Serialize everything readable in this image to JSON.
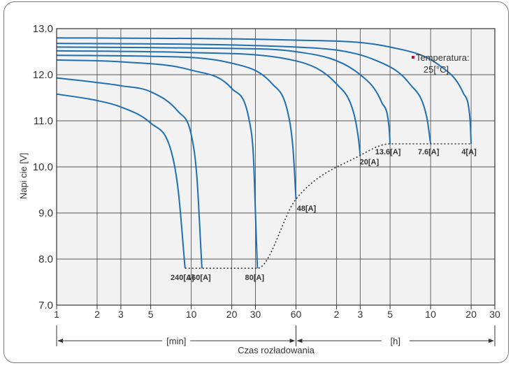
{
  "chart_data": {
    "type": "line",
    "ylabel": "Napi cie [V]",
    "xlabel": "Czas rozładowania",
    "ylim": [
      7.0,
      13.0
    ],
    "yticks": [
      "7.0",
      "8.0",
      "9.0",
      "10.0",
      "11.0",
      "12.0",
      "13.0"
    ],
    "xscale": "log",
    "xticks": [
      {
        "label": "1",
        "minutes": 1
      },
      {
        "label": "2",
        "minutes": 2
      },
      {
        "label": "3",
        "minutes": 3
      },
      {
        "label": "5",
        "minutes": 5
      },
      {
        "label": "10",
        "minutes": 10
      },
      {
        "label": "20",
        "minutes": 20
      },
      {
        "label": "30",
        "minutes": 30
      },
      {
        "label": "60",
        "minutes": 60
      },
      {
        "label": "2",
        "minutes": 120
      },
      {
        "label": "3",
        "minutes": 180
      },
      {
        "label": "5",
        "minutes": 300
      },
      {
        "label": "10",
        "minutes": 600
      },
      {
        "label": "20",
        "minutes": 1200
      },
      {
        "label": "30",
        "minutes": 1800
      }
    ],
    "unit_ranges": [
      {
        "label": "[min]",
        "from_minutes": 1,
        "to_minutes": 60
      },
      {
        "label": "[h]",
        "from_minutes": 60,
        "to_minutes": 1800
      }
    ],
    "legend": {
      "text": [
        "Temperatura:",
        "25[°C]"
      ],
      "marker_color": "#c8102e",
      "position": "top-right"
    },
    "line_color": "#1f6fb2",
    "cutoff_line": {
      "style": "dotted",
      "color": "#333333"
    },
    "series": [
      {
        "name": "240[A]",
        "points": [
          [
            1,
            11.58
          ],
          [
            2,
            11.44
          ],
          [
            3,
            11.3
          ],
          [
            5,
            10.95
          ],
          [
            7,
            10.4
          ],
          [
            8,
            9.5
          ],
          [
            9,
            7.8
          ]
        ]
      },
      {
        "name": "160[A]",
        "points": [
          [
            1,
            11.93
          ],
          [
            2,
            11.83
          ],
          [
            3,
            11.76
          ],
          [
            5,
            11.63
          ],
          [
            8,
            11.2
          ],
          [
            10,
            10.7
          ],
          [
            11,
            9.8
          ],
          [
            12,
            7.8
          ]
        ]
      },
      {
        "name": "80[A]",
        "points": [
          [
            1,
            12.32
          ],
          [
            3,
            12.28
          ],
          [
            10,
            12.1
          ],
          [
            20,
            11.7
          ],
          [
            27,
            11.0
          ],
          [
            29,
            10.2
          ],
          [
            30,
            9.0
          ],
          [
            31,
            7.8
          ]
        ]
      },
      {
        "name": "48[A]",
        "points": [
          [
            1,
            12.42
          ],
          [
            5,
            12.4
          ],
          [
            20,
            12.25
          ],
          [
            40,
            11.8
          ],
          [
            52,
            11.2
          ],
          [
            57,
            10.4
          ],
          [
            60,
            9.3
          ]
        ]
      },
      {
        "name": "20[A]",
        "points": [
          [
            1,
            12.52
          ],
          [
            10,
            12.48
          ],
          [
            60,
            12.3
          ],
          [
            120,
            11.8
          ],
          [
            160,
            11.2
          ],
          [
            175,
            10.6
          ],
          [
            180,
            10.25
          ]
        ]
      },
      {
        "name": "13.6[A]",
        "points": [
          [
            1,
            12.6
          ],
          [
            20,
            12.57
          ],
          [
            60,
            12.5
          ],
          [
            180,
            12.0
          ],
          [
            260,
            11.4
          ],
          [
            295,
            10.85
          ],
          [
            300,
            10.5
          ]
        ]
      },
      {
        "name": "7.6[A]",
        "points": [
          [
            1,
            12.68
          ],
          [
            60,
            12.6
          ],
          [
            240,
            12.3
          ],
          [
            420,
            11.8
          ],
          [
            560,
            11.1
          ],
          [
            600,
            10.5
          ]
        ]
      },
      {
        "name": "4[A]",
        "points": [
          [
            1,
            12.8
          ],
          [
            60,
            12.75
          ],
          [
            300,
            12.6
          ],
          [
            700,
            12.2
          ],
          [
            1050,
            11.6
          ],
          [
            1180,
            11.0
          ],
          [
            1200,
            10.5
          ]
        ]
      }
    ]
  }
}
